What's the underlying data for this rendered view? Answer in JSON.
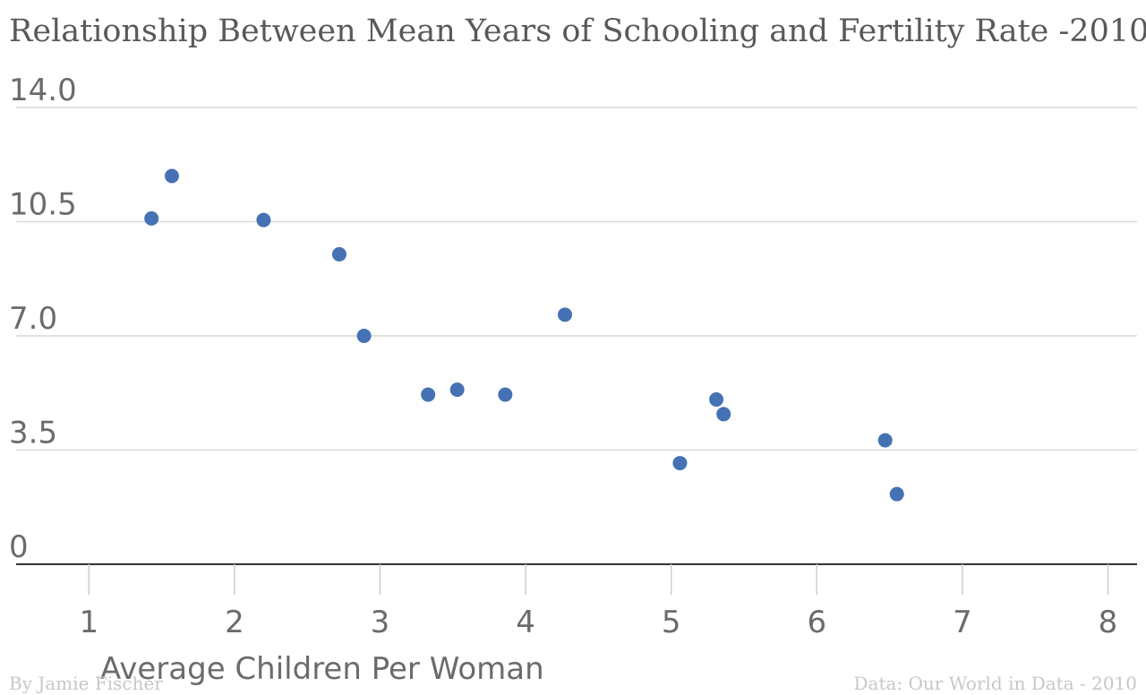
{
  "chart_data": {
    "type": "scatter",
    "title": "Relationship Between Mean Years of Schooling and Fertility Rate -2010",
    "xlabel": "Average Children Per Woman",
    "ylabel": "",
    "xlim": [
      0.5,
      8.2
    ],
    "ylim": [
      0,
      14
    ],
    "x_ticks": [
      1,
      2,
      3,
      4,
      5,
      6,
      7,
      8
    ],
    "y_ticks": [
      0,
      3.5,
      7,
      10.5,
      14
    ],
    "x_tick_labels": [
      "1",
      "2",
      "3",
      "4",
      "5",
      "6",
      "7",
      "8"
    ],
    "y_tick_labels": [
      "0",
      "3.5",
      "7.0",
      "10.5",
      "14.0"
    ],
    "series": [
      {
        "name": "Countries",
        "color": "#4472b4",
        "points": [
          {
            "x": 1.43,
            "y": 10.6
          },
          {
            "x": 1.57,
            "y": 11.9
          },
          {
            "x": 2.2,
            "y": 10.55
          },
          {
            "x": 2.72,
            "y": 9.5
          },
          {
            "x": 2.89,
            "y": 7.0
          },
          {
            "x": 3.33,
            "y": 5.2
          },
          {
            "x": 3.53,
            "y": 5.35
          },
          {
            "x": 3.86,
            "y": 5.2
          },
          {
            "x": 4.27,
            "y": 7.65
          },
          {
            "x": 5.06,
            "y": 3.1
          },
          {
            "x": 5.31,
            "y": 5.05
          },
          {
            "x": 5.36,
            "y": 4.6
          },
          {
            "x": 6.47,
            "y": 3.8
          },
          {
            "x": 6.55,
            "y": 2.15
          }
        ]
      }
    ]
  },
  "footer": {
    "left": "By Jamie Fischer",
    "right": "Data: Our World in Data - 2010"
  }
}
